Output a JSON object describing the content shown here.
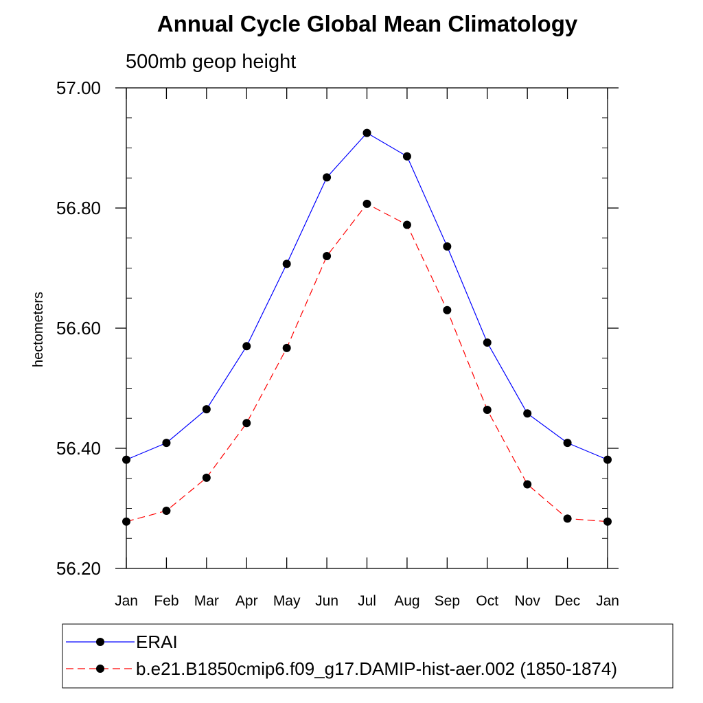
{
  "chart_data": {
    "type": "line",
    "title": "Annual Cycle Global Mean Climatology",
    "subtitle": "500mb geop height",
    "xlabel": "",
    "ylabel": "hectometers",
    "categories": [
      "Jan",
      "Feb",
      "Mar",
      "Apr",
      "May",
      "Jun",
      "Jul",
      "Aug",
      "Sep",
      "Oct",
      "Nov",
      "Dec",
      "Jan"
    ],
    "ylim": [
      56.2,
      57.0
    ],
    "yticks": [
      56.2,
      56.4,
      56.6,
      56.8,
      57.0
    ],
    "ytick_labels": [
      "56.20",
      "56.40",
      "56.60",
      "56.80",
      "57.00"
    ],
    "yminor_step": 0.05,
    "grid": false,
    "legend_position": "bottom",
    "series": [
      {
        "name": "ERAI",
        "color": "#0000ff",
        "line_style": "solid",
        "marker": "filled-circle",
        "values": [
          56.381,
          56.409,
          56.465,
          56.57,
          56.707,
          56.851,
          56.925,
          56.886,
          56.736,
          56.576,
          56.458,
          56.409,
          56.381
        ]
      },
      {
        "name": "b.e21.B1850cmip6.f09_g17.DAMIP-hist-aer.002 (1850-1874)",
        "color": "#ff0000",
        "line_style": "dashed",
        "marker": "filled-circle",
        "values": [
          56.278,
          56.296,
          56.351,
          56.442,
          56.567,
          56.72,
          56.807,
          56.772,
          56.63,
          56.464,
          56.34,
          56.283,
          56.278
        ]
      }
    ]
  }
}
